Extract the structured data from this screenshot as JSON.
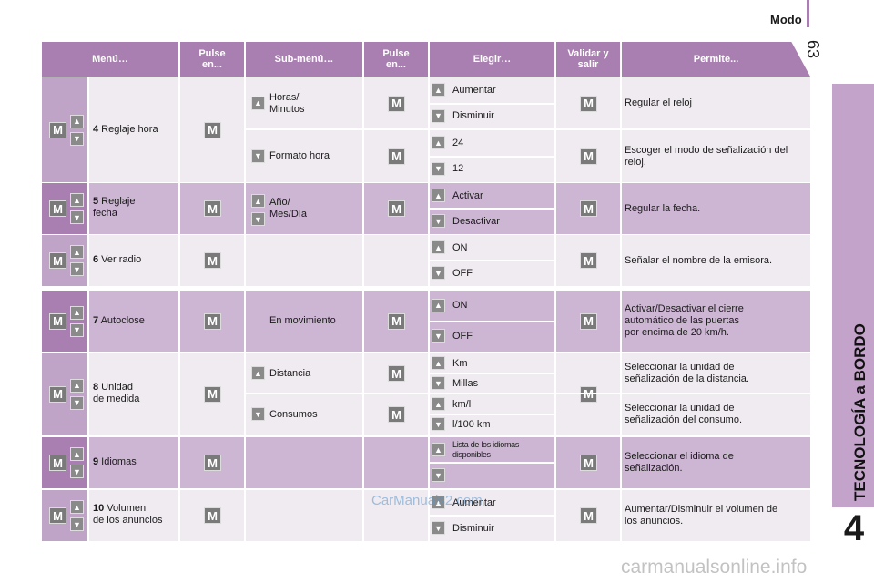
{
  "page": {
    "section": "Modo",
    "number": "63",
    "chapter_title": "TECNOLOGÍA a BORDO",
    "chapter_number": "4"
  },
  "icons": {
    "m": "M",
    "up": "▲",
    "down": "▼"
  },
  "colors": {
    "header": "#a97fb1",
    "row_dark": "#cdb6d3",
    "row_light": "#f0ebf1",
    "left_dark": "#a97fb1",
    "left_light": "#bfa4c7",
    "button": "#7a7a7a"
  },
  "headers": {
    "menu": "Menú…",
    "press1": "Pulse en...",
    "submenu": "Sub-menú…",
    "press2": "Pulse en...",
    "choose": "Elegir…",
    "validate": "Validar y salir",
    "allows": "Permite..."
  },
  "rows": [
    {
      "num": "4",
      "menu": "Reglaje hora",
      "subs": [
        {
          "label": "Horas/\nMinutos",
          "choices": [
            "Aumentar",
            "Disminuir"
          ],
          "permits": "Regular el reloj"
        },
        {
          "label": "Formato hora",
          "choices": [
            "24",
            "12"
          ],
          "permits": "Escoger el modo de señalización del reloj."
        }
      ]
    },
    {
      "num": "5",
      "menu": "Reglaje\nfecha",
      "subs": [
        {
          "label": "Año/\nMes/Día",
          "choices": [
            "Activar",
            "Desactivar"
          ],
          "permits": "Regular la fecha."
        }
      ]
    },
    {
      "num": "6",
      "menu": "Ver radio",
      "subs": [
        {
          "label": "",
          "choices": [
            "ON",
            "OFF"
          ],
          "permits": "Señalar el nombre de la emisora."
        }
      ]
    },
    {
      "num": "7",
      "menu": "Autoclose",
      "subs": [
        {
          "label": "En movimiento",
          "choices": [
            "ON",
            "OFF"
          ],
          "permits": "Activar/Desactivar el cierre\nautomático de las puertas\npor encima de 20 km/h."
        }
      ]
    },
    {
      "num": "8",
      "menu": "Unidad\nde medida",
      "subs": [
        {
          "label": "Distancia",
          "choices": [
            "Km",
            "Millas"
          ],
          "permits": "Seleccionar la unidad de\nseñalización de la distancia."
        },
        {
          "label": "Consumos",
          "choices": [
            "km/l",
            "l/100 km"
          ],
          "permits": "Seleccionar la unidad de\nseñalización del consumo."
        }
      ]
    },
    {
      "num": "9",
      "menu": "Idiomas",
      "subs": [
        {
          "label": "",
          "choices": [
            "Lista de los idiomas\ndisponibles",
            ""
          ],
          "permits": "Seleccionar el idioma de\nseñalización."
        }
      ]
    },
    {
      "num": "10",
      "menu": "Volumen\nde los anuncios",
      "subs": [
        {
          "label": "",
          "choices": [
            "Aumentar",
            "Disminuir"
          ],
          "permits": "Aumentar/Disminuir el volumen de\nlos anuncios."
        }
      ]
    }
  ],
  "watermarks": {
    "top": "CarManuals2.com",
    "bottom": "carmanualsonline.info"
  }
}
